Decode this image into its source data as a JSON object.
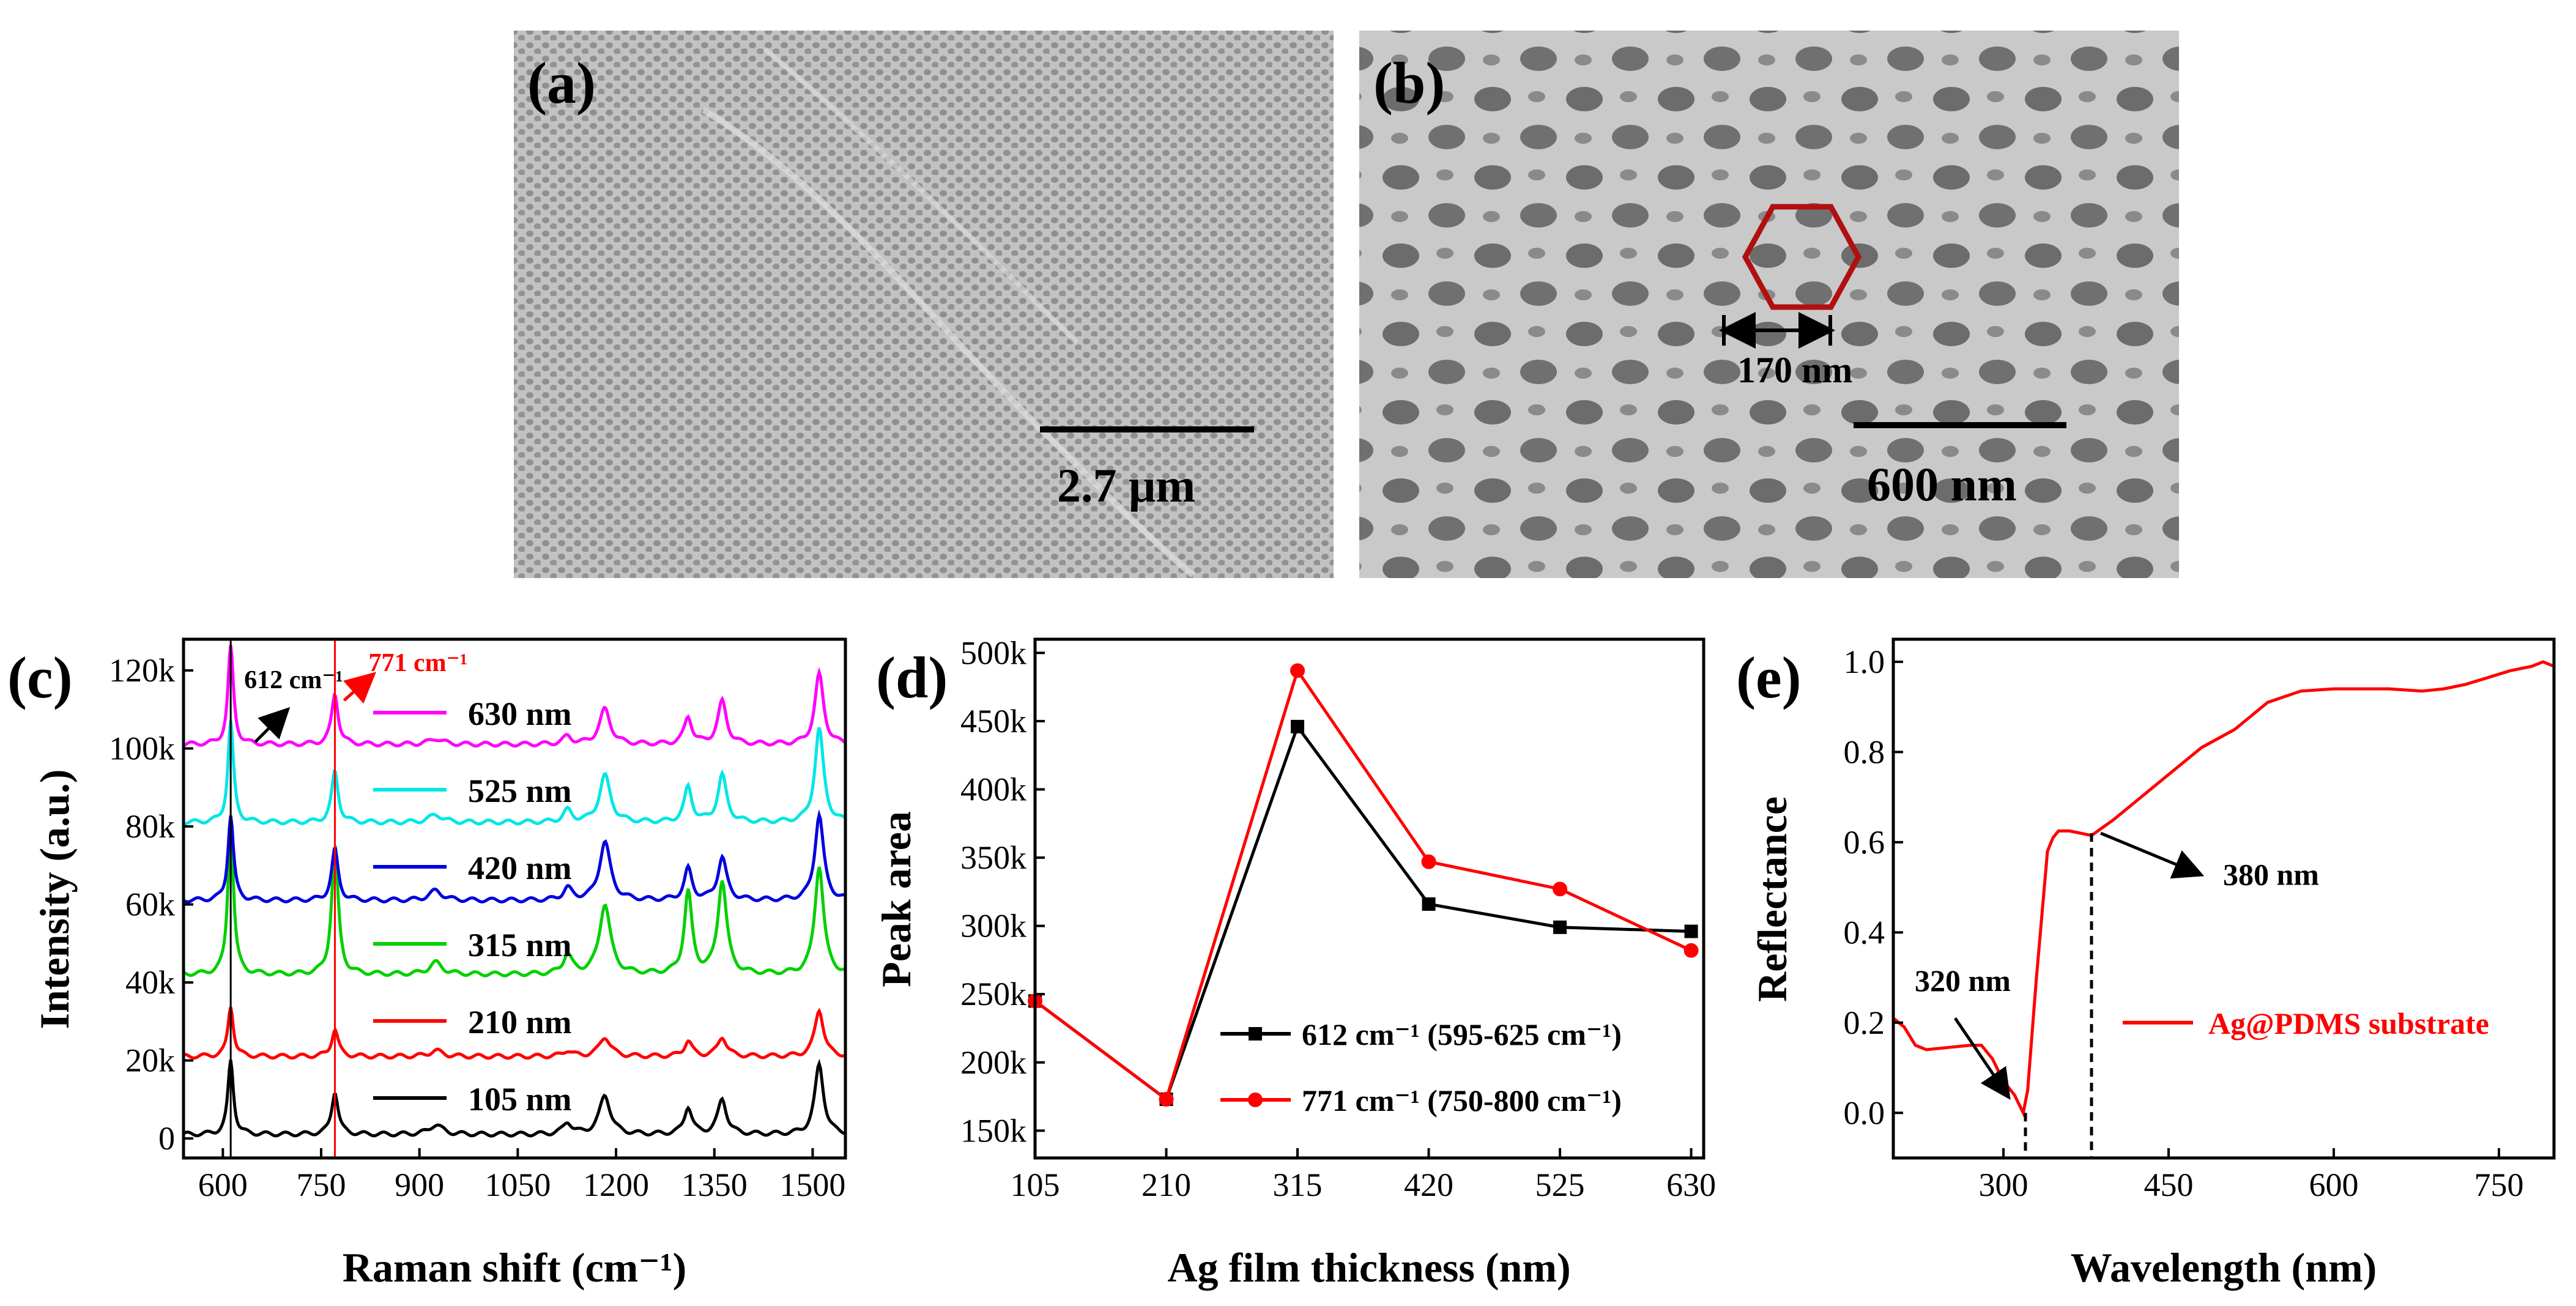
{
  "panel_a": {
    "label": "(a)",
    "scale_bar_label": "2.7 μm"
  },
  "panel_b": {
    "label": "(b)",
    "scale_bar_label": "600 nm",
    "feature_label": "170 nm"
  },
  "colors": {
    "black": "#000000",
    "red": "#ff0000",
    "green": "#00d000",
    "blue": "#0000e0",
    "cyan": "#00e6e6",
    "magenta": "#ff00ff",
    "dark_red": "#b01010",
    "sem_bg": "#bdbdbd"
  },
  "chart_data": [
    {
      "panel": "(c)",
      "type": "line",
      "title": "",
      "xlabel": "Raman shift (cm⁻¹)",
      "ylabel": "Intensity (a.u.)",
      "xlim": [
        540,
        1550
      ],
      "ylim": [
        -5000,
        128000
      ],
      "xticks": [
        600,
        750,
        900,
        1050,
        1200,
        1350,
        1500
      ],
      "xtick_labels": [
        "600",
        "750",
        "900",
        "1050",
        "1200",
        "1350",
        "1500"
      ],
      "yticks": [
        0,
        20000,
        40000,
        60000,
        80000,
        100000,
        120000
      ],
      "ytick_labels": [
        "0",
        "20k",
        "40k",
        "60k",
        "80k",
        "100k",
        "120k"
      ],
      "peak_annotations": [
        {
          "text": "612 cm⁻¹",
          "x": 612,
          "color": "#000000"
        },
        {
          "text": "771 cm⁻¹",
          "x": 771,
          "color": "#ff0000"
        }
      ],
      "peaks_cm": [
        612,
        771,
        925,
        1126,
        1183,
        1310,
        1362,
        1510
      ],
      "series": [
        {
          "name": "105 nm",
          "baseline": 1000,
          "color": "#000000",
          "peak_heights": [
            19000,
            11000,
            2500,
            3000,
            10000,
            7000,
            9000,
            18000
          ]
        },
        {
          "name": "210 nm",
          "baseline": 21000,
          "color": "#ff0000",
          "peak_heights": [
            13000,
            7000,
            1500,
            1500,
            5000,
            4000,
            5000,
            12000
          ]
        },
        {
          "name": "315 nm",
          "baseline": 42000,
          "color": "#00d000",
          "peak_heights": [
            40000,
            33000,
            3000,
            5000,
            18000,
            21000,
            24000,
            28000
          ]
        },
        {
          "name": "420 nm",
          "baseline": 61000,
          "color": "#0000e0",
          "peak_heights": [
            22000,
            13000,
            2500,
            3000,
            15000,
            8000,
            11000,
            22000
          ]
        },
        {
          "name": "525 nm",
          "baseline": 81000,
          "color": "#00e6e6",
          "peak_heights": [
            26000,
            13000,
            2000,
            3000,
            12000,
            9000,
            12000,
            24000
          ]
        },
        {
          "name": "630 nm",
          "baseline": 101000,
          "color": "#ff00ff",
          "peak_heights": [
            25000,
            13000,
            1500,
            2000,
            9000,
            7000,
            11000,
            18000
          ]
        }
      ]
    },
    {
      "panel": "(d)",
      "type": "line",
      "title": "",
      "xlabel": "Ag film thickness (nm)",
      "ylabel": "Peak area",
      "categories": [
        "105",
        "210",
        "315",
        "420",
        "525",
        "630"
      ],
      "x": [
        105,
        210,
        315,
        420,
        525,
        630
      ],
      "xlim": [
        105,
        640
      ],
      "ylim": [
        130000,
        510000
      ],
      "yticks": [
        150000,
        200000,
        250000,
        300000,
        350000,
        400000,
        450000,
        500000
      ],
      "ytick_labels": [
        "150k",
        "200k",
        "250k",
        "300k",
        "350k",
        "400k",
        "450k",
        "500k"
      ],
      "legend_position": "bottom-right",
      "series": [
        {
          "name": "612 cm⁻¹ (595-625 cm⁻¹)",
          "color": "#000000",
          "marker": "square",
          "values": [
            245000,
            173000,
            446000,
            316000,
            299000,
            296000
          ]
        },
        {
          "name": "771 cm⁻¹ (750-800 cm⁻¹)",
          "color": "#ff0000",
          "marker": "circle",
          "values": [
            245000,
            173000,
            487000,
            347000,
            327000,
            282000
          ]
        }
      ]
    },
    {
      "panel": "(e)",
      "type": "line",
      "title": "",
      "xlabel": "Wavelength (nm)",
      "ylabel": "Reflectance",
      "xlim": [
        200,
        800
      ],
      "ylim": [
        -0.1,
        1.05
      ],
      "xticks": [
        300,
        450,
        600,
        750
      ],
      "xtick_labels": [
        "300",
        "450",
        "600",
        "750"
      ],
      "yticks": [
        0.0,
        0.2,
        0.4,
        0.6,
        0.8,
        1.0
      ],
      "ytick_labels": [
        "0.0",
        "0.2",
        "0.4",
        "0.6",
        "0.8",
        "1.0"
      ],
      "legend_position": "lower-right",
      "annotations": [
        {
          "text": "320 nm",
          "x": 320,
          "y": 0.0
        },
        {
          "text": "380 nm",
          "x": 380,
          "y": 0.62
        }
      ],
      "series": [
        {
          "name": "Ag@PDMS substrate",
          "color": "#ff0000",
          "x": [
            200,
            210,
            220,
            230,
            250,
            270,
            280,
            290,
            300,
            310,
            318,
            322,
            330,
            340,
            345,
            350,
            360,
            370,
            380,
            400,
            420,
            450,
            480,
            510,
            540,
            570,
            600,
            650,
            680,
            700,
            720,
            740,
            760,
            780,
            790,
            800
          ],
          "y": [
            0.21,
            0.19,
            0.15,
            0.14,
            0.145,
            0.15,
            0.15,
            0.12,
            0.07,
            0.04,
            0.0,
            0.05,
            0.3,
            0.58,
            0.61,
            0.625,
            0.625,
            0.62,
            0.615,
            0.65,
            0.69,
            0.75,
            0.81,
            0.85,
            0.91,
            0.935,
            0.94,
            0.94,
            0.935,
            0.94,
            0.95,
            0.965,
            0.98,
            0.99,
            1.0,
            0.99
          ]
        }
      ]
    }
  ]
}
